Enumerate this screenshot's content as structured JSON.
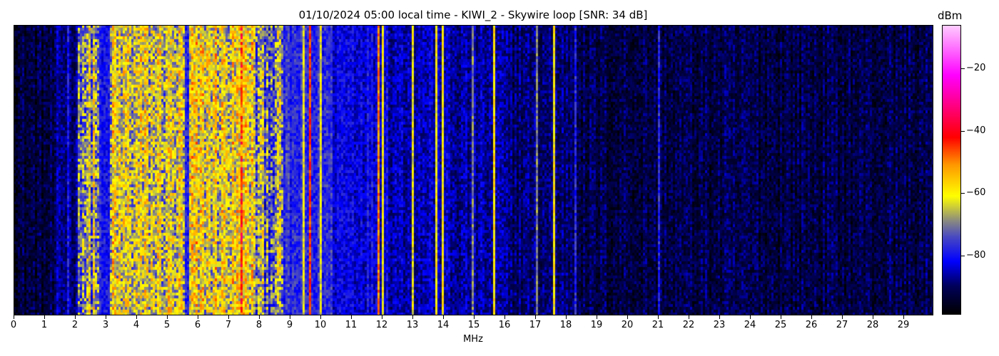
{
  "chart_data": {
    "type": "heatmap",
    "title": "01/10/2024 05:00 local time - KIWI_2 - Skywire loop [SNR: 34 dB]",
    "xlabel": "MHz",
    "xlim": [
      0,
      30
    ],
    "x_ticks": [
      "0",
      "1",
      "2",
      "3",
      "4",
      "5",
      "6",
      "7",
      "8",
      "9",
      "10",
      "11",
      "12",
      "13",
      "14",
      "15",
      "16",
      "17",
      "18",
      "19",
      "20",
      "21",
      "22",
      "23",
      "24",
      "25",
      "26",
      "27",
      "28",
      "29"
    ],
    "colorbar": {
      "label": "dBm",
      "range": [
        -99,
        -6
      ],
      "ticks": [
        "−20",
        "−40",
        "−60",
        "−80"
      ],
      "tick_values": [
        -20,
        -40,
        -60,
        -80
      ],
      "colormap_stops": [
        {
          "value": -99,
          "color": "#000000"
        },
        {
          "value": -90,
          "color": "#00005a"
        },
        {
          "value": -82,
          "color": "#0000ff"
        },
        {
          "value": -74,
          "color": "#4a4ac0"
        },
        {
          "value": -69,
          "color": "#8a8a80"
        },
        {
          "value": -61,
          "color": "#ffff00"
        },
        {
          "value": -51,
          "color": "#ff9900"
        },
        {
          "value": -42,
          "color": "#ff0000"
        },
        {
          "value": -22,
          "color": "#ff00ff"
        },
        {
          "value": -6,
          "color": "#ffccff"
        }
      ]
    },
    "band_levels_dbm": [
      {
        "from": 0,
        "to": 1.4,
        "level": -93
      },
      {
        "from": 1.4,
        "to": 2.1,
        "level": -88
      },
      {
        "from": 2.1,
        "to": 2.8,
        "level": -68
      },
      {
        "from": 2.8,
        "to": 3.1,
        "level": -81
      },
      {
        "from": 3.1,
        "to": 5.6,
        "level": -64
      },
      {
        "from": 5.6,
        "to": 5.75,
        "level": -80
      },
      {
        "from": 5.75,
        "to": 7.9,
        "level": -62
      },
      {
        "from": 7.9,
        "to": 8.8,
        "level": -70
      },
      {
        "from": 8.8,
        "to": 10.4,
        "level": -78
      },
      {
        "from": 10.4,
        "to": 12.2,
        "level": -82
      },
      {
        "from": 12.2,
        "to": 14.2,
        "level": -85
      },
      {
        "from": 14.2,
        "to": 16,
        "level": -87
      },
      {
        "from": 16,
        "to": 18.5,
        "level": -89
      },
      {
        "from": 18.5,
        "to": 30,
        "level": -92
      }
    ],
    "carrier_lines_dbm": [
      {
        "mhz": 1.8,
        "level": -80
      },
      {
        "mhz": 2.6,
        "level": -60
      },
      {
        "mhz": 7.4,
        "level": -45
      },
      {
        "mhz": 9.45,
        "level": -62
      },
      {
        "mhz": 9.7,
        "level": -45
      },
      {
        "mhz": 10.0,
        "level": -62
      },
      {
        "mhz": 11.9,
        "level": -50
      },
      {
        "mhz": 12.05,
        "level": -60
      },
      {
        "mhz": 13.0,
        "level": -62
      },
      {
        "mhz": 13.8,
        "level": -60
      },
      {
        "mhz": 14.0,
        "level": -60
      },
      {
        "mhz": 15.0,
        "level": -70
      },
      {
        "mhz": 15.7,
        "level": -58
      },
      {
        "mhz": 17.05,
        "level": -70
      },
      {
        "mhz": 17.6,
        "level": -60
      },
      {
        "mhz": 18.3,
        "level": -78
      },
      {
        "mhz": 21.05,
        "level": -78
      }
    ]
  }
}
